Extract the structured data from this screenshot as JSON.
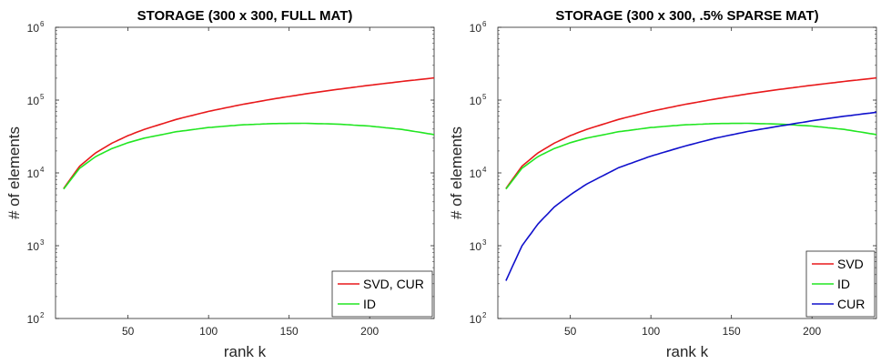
{
  "chart_data": [
    {
      "type": "line",
      "title": "STORAGE (300 x 300, FULL MAT)",
      "xlabel": "rank k",
      "ylabel": "# of elements",
      "xlim": [
        5,
        240
      ],
      "ylim": [
        100,
        1000000
      ],
      "yscale": "log",
      "xticks": [
        "50",
        "100",
        "150",
        "200"
      ],
      "yticks": [
        {
          "base": "10",
          "exp": "2"
        },
        {
          "base": "10",
          "exp": "3"
        },
        {
          "base": "10",
          "exp": "4"
        },
        {
          "base": "10",
          "exp": "5"
        },
        {
          "base": "10",
          "exp": "6"
        }
      ],
      "legend_position": "bottom-right",
      "x": [
        10,
        20,
        30,
        40,
        50,
        60,
        80,
        100,
        120,
        140,
        160,
        180,
        200,
        220,
        240
      ],
      "series": [
        {
          "name": "SVD, CUR",
          "color": "#e8191b",
          "values": [
            6100,
            12400,
            18900,
            25600,
            32500,
            39600,
            54400,
            70000,
            86400,
            103600,
            121600,
            140400,
            160000,
            180400,
            201600
          ]
        },
        {
          "name": "ID",
          "color": "#22e622",
          "values": [
            6000,
            11600,
            16800,
            21600,
            26000,
            30000,
            36800,
            42000,
            45600,
            47600,
            48000,
            46800,
            44000,
            39600,
            33600
          ]
        }
      ]
    },
    {
      "type": "line",
      "title": "STORAGE (300 x 300, .5% SPARSE MAT)",
      "xlabel": "rank k",
      "ylabel": "# of elements",
      "xlim": [
        5,
        240
      ],
      "ylim": [
        100,
        1000000
      ],
      "yscale": "log",
      "xticks": [
        "50",
        "100",
        "150",
        "200"
      ],
      "yticks": [
        {
          "base": "10",
          "exp": "2"
        },
        {
          "base": "10",
          "exp": "3"
        },
        {
          "base": "10",
          "exp": "4"
        },
        {
          "base": "10",
          "exp": "5"
        },
        {
          "base": "10",
          "exp": "6"
        }
      ],
      "legend_position": "bottom-right",
      "x": [
        10,
        20,
        30,
        40,
        50,
        60,
        80,
        100,
        120,
        140,
        160,
        180,
        200,
        220,
        240
      ],
      "series": [
        {
          "name": "SVD",
          "color": "#e8191b",
          "values": [
            6100,
            12400,
            18900,
            25600,
            32500,
            39600,
            54400,
            70000,
            86400,
            103600,
            121600,
            140400,
            160000,
            180400,
            201600
          ]
        },
        {
          "name": "ID",
          "color": "#22e622",
          "values": [
            6000,
            11600,
            16800,
            21600,
            26000,
            30000,
            36800,
            42000,
            45600,
            47600,
            48000,
            46800,
            44000,
            39600,
            33600
          ]
        },
        {
          "name": "CUR",
          "color": "#1010cc",
          "values": [
            330,
            1000,
            2000,
            3400,
            5000,
            7000,
            11800,
            17000,
            23000,
            30000,
            37000,
            44000,
            52000,
            60000,
            68000
          ]
        }
      ]
    }
  ]
}
